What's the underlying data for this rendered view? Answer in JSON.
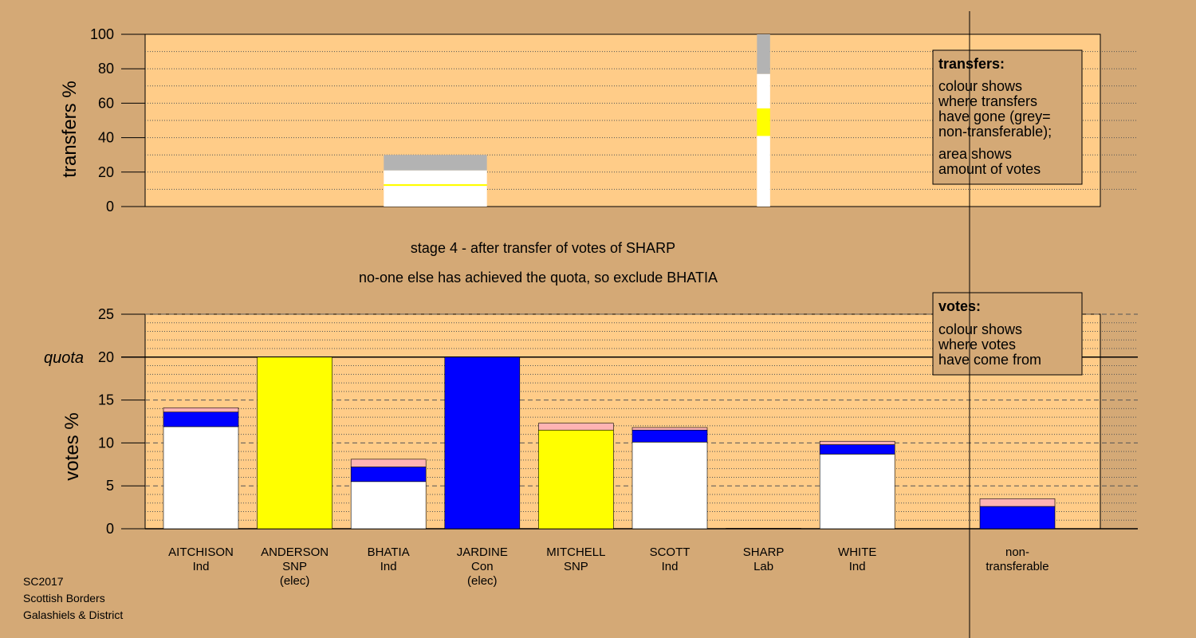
{
  "chart_data": [
    {
      "name": "transfers",
      "type": "bar",
      "ylabel": "transfers %",
      "ylim": [
        0,
        100
      ],
      "yticks": [
        0,
        20,
        40,
        60,
        80,
        100
      ],
      "grid": true,
      "columns": [
        {
          "x_index": 2.5,
          "width_index": 1.1,
          "segments": [
            {
              "color": "#ffffff",
              "value": 12
            },
            {
              "color": "#ffff00",
              "value": 1
            },
            {
              "color": "#ffffff",
              "value": 8
            },
            {
              "color": "#b3b3b3",
              "value": 9
            }
          ]
        },
        {
          "x_index": 6.0,
          "width_index": 0.14,
          "segments": [
            {
              "color": "#ffffff",
              "value": 41
            },
            {
              "color": "#ffff00",
              "value": 16
            },
            {
              "color": "#ffffff",
              "value": 20
            },
            {
              "color": "#b3b3b3",
              "value": 23
            }
          ]
        }
      ],
      "legend": {
        "position": "top-right",
        "title": "transfers:",
        "lines": [
          "colour shows",
          "where transfers",
          "have gone (grey=",
          "non-transferable);",
          "area shows",
          "amount of votes"
        ]
      }
    },
    {
      "name": "votes",
      "type": "bar",
      "ylabel": "votes %",
      "ylim": [
        0,
        25
      ],
      "yticks": [
        0,
        5,
        10,
        15,
        20,
        25
      ],
      "quota": {
        "label": "quota",
        "value": 20
      },
      "grid": true,
      "categories": [
        {
          "lines": [
            "AITCHISON",
            "Ind"
          ],
          "segments": [
            {
              "color": "#ffffff",
              "value": 11.9
            },
            {
              "color": "#0000ff",
              "value": 1.7
            },
            {
              "color": "#ffb3b3",
              "value": 0.5
            }
          ]
        },
        {
          "lines": [
            "ANDERSON",
            "SNP",
            "(elec)"
          ],
          "segments": [
            {
              "color": "#ffff00",
              "value": 20
            }
          ]
        },
        {
          "lines": [
            "BHATIA",
            "Ind"
          ],
          "segments": [
            {
              "color": "#ffffff",
              "value": 5.5
            },
            {
              "color": "#0000ff",
              "value": 1.7
            },
            {
              "color": "#ffb3b3",
              "value": 0.9
            }
          ]
        },
        {
          "lines": [
            "JARDINE",
            "Con",
            "(elec)"
          ],
          "segments": [
            {
              "color": "#0000ff",
              "value": 20
            }
          ]
        },
        {
          "lines": [
            "MITCHELL",
            "SNP"
          ],
          "segments": [
            {
              "color": "#ffff00",
              "value": 11.5
            },
            {
              "color": "#ffb3b3",
              "value": 0.8
            }
          ]
        },
        {
          "lines": [
            "SCOTT",
            "Ind"
          ],
          "segments": [
            {
              "color": "#ffffff",
              "value": 10.1
            },
            {
              "color": "#0000ff",
              "value": 1.4
            },
            {
              "color": "#ffb3b3",
              "value": 0.3
            }
          ]
        },
        {
          "lines": [
            "SHARP",
            "Lab"
          ],
          "segments": [
            {
              "color": "#ff0000",
              "value": 0.05
            }
          ]
        },
        {
          "lines": [
            "WHITE",
            "Ind"
          ],
          "segments": [
            {
              "color": "#ffffff",
              "value": 8.7
            },
            {
              "color": "#0000ff",
              "value": 1.1
            },
            {
              "color": "#ffb3b3",
              "value": 0.4
            }
          ]
        }
      ],
      "nontransferable": {
        "lines": [
          "non-",
          "transferable"
        ],
        "segments": [
          {
            "color": "#0000ff",
            "value": 2.6
          },
          {
            "color": "#ffb3b3",
            "value": 0.9
          }
        ]
      },
      "legend": {
        "position": "top-right",
        "title": "votes:",
        "lines": [
          "colour shows",
          "where votes",
          "have come from"
        ]
      }
    }
  ],
  "stage_text": [
    "stage 4 - after transfer of votes of SHARP",
    "no-one else has achieved the quota, so exclude BHATIA"
  ],
  "footer": [
    "SC2017",
    "Scottish Borders",
    "Galashiels & District"
  ],
  "colors": {
    "page_background": "#d4a976",
    "plot_background": "#ffcc88",
    "white_ind": "#ffffff",
    "snp": "#ffff00",
    "con": "#0000ff",
    "lab": "#ff0000",
    "pink": "#ffb3b3",
    "grey": "#b3b3b3"
  }
}
